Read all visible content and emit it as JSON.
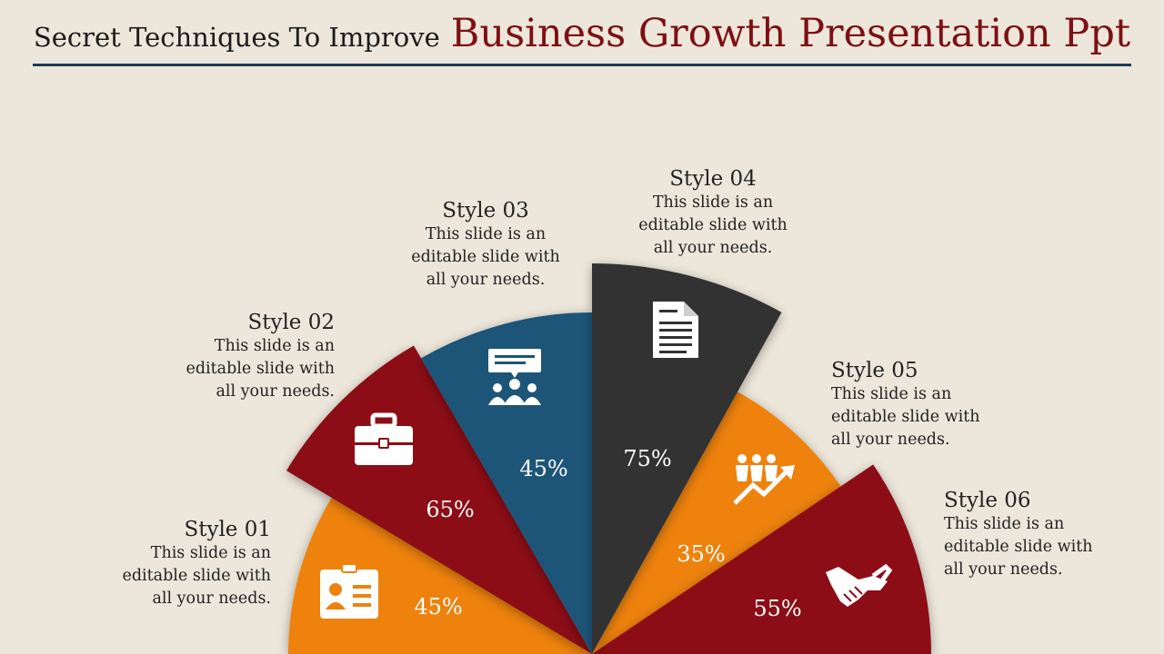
{
  "header": {
    "title_small": "Secret Techniques To Improve",
    "title_big": "Business Growth Presentation Ppt"
  },
  "colors": {
    "orange": "#ee820f",
    "maroon": "#8c0b13",
    "blue": "#1d5478",
    "charcoal": "#323232",
    "background": "#ede7db"
  },
  "styles": [
    {
      "name": "Style 01",
      "text": "This slide is an\neditable slide with\nall your needs.",
      "percent": "45%",
      "color": "orange",
      "icon": "id-card-icon"
    },
    {
      "name": "Style 02",
      "text": "This slide is an\neditable slide with\nall your needs.",
      "percent": "65%",
      "color": "maroon",
      "icon": "briefcase-icon"
    },
    {
      "name": "Style 03",
      "text": "This slide is an\neditable slide with\nall your needs.",
      "percent": "45%",
      "color": "blue",
      "icon": "meeting-icon"
    },
    {
      "name": "Style 04",
      "text": "This slide is an\neditable slide with\nall your needs.",
      "percent": "75%",
      "color": "charcoal",
      "icon": "document-icon"
    },
    {
      "name": "Style 05",
      "text": "This slide is an\neditable slide with\nall your needs.",
      "percent": "35%",
      "color": "orange",
      "icon": "team-growth-icon"
    },
    {
      "name": "Style 06",
      "text": "This slide is an\neditable slide with\nall your needs.",
      "percent": "55%",
      "color": "maroon",
      "icon": "handshake-icon"
    }
  ]
}
